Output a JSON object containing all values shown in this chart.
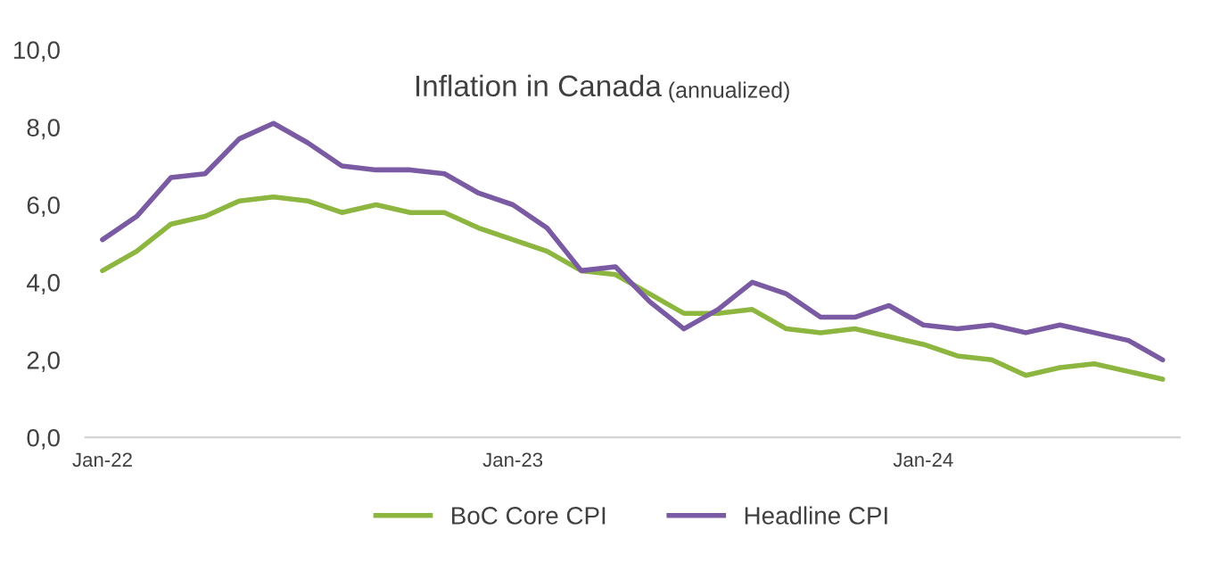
{
  "chart_data": {
    "type": "line",
    "title": "Inflation in Canada",
    "subtitle": "(annualized)",
    "categories": [
      "Jan-22",
      null,
      null,
      null,
      null,
      null,
      null,
      null,
      null,
      null,
      null,
      null,
      "Jan-23",
      null,
      null,
      null,
      null,
      null,
      null,
      null,
      null,
      null,
      null,
      null,
      "Jan-24",
      null,
      null,
      null,
      null,
      null,
      null,
      null
    ],
    "series": [
      {
        "name": "BoC Core CPI",
        "color": "#8db640",
        "values": [
          4.3,
          4.8,
          5.5,
          5.7,
          6.1,
          6.2,
          6.1,
          5.8,
          6.0,
          5.8,
          5.8,
          5.4,
          5.1,
          4.8,
          4.3,
          4.2,
          3.7,
          3.2,
          3.2,
          3.3,
          2.8,
          2.7,
          2.8,
          2.6,
          2.4,
          2.1,
          2.0,
          1.6,
          1.8,
          1.9,
          1.7,
          1.5
        ]
      },
      {
        "name": "Headline CPI",
        "color": "#7a5aa3",
        "values": [
          5.1,
          5.7,
          6.7,
          6.8,
          7.7,
          8.1,
          7.6,
          7.0,
          6.9,
          6.9,
          6.8,
          6.3,
          6.0,
          5.4,
          4.3,
          4.4,
          3.5,
          2.8,
          3.3,
          4.0,
          3.7,
          3.1,
          3.1,
          3.4,
          2.9,
          2.8,
          2.9,
          2.7,
          2.9,
          2.7,
          2.5,
          2.0
        ]
      }
    ],
    "ylim": [
      0,
      10
    ],
    "yticks": [
      {
        "value": 0,
        "label": "0,0"
      },
      {
        "value": 2,
        "label": "2,0"
      },
      {
        "value": 4,
        "label": "4,0"
      },
      {
        "value": 6,
        "label": "6,0"
      },
      {
        "value": 8,
        "label": "8,0"
      },
      {
        "value": 10,
        "label": "10,0"
      }
    ],
    "grid": false,
    "legend": "bottom",
    "marker": "none",
    "line_style": "solid"
  }
}
